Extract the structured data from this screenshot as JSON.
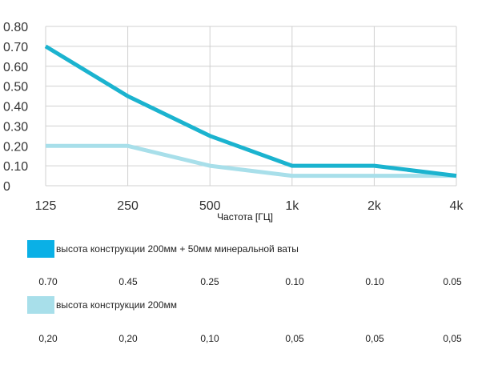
{
  "chart_data": {
    "type": "line",
    "x": [
      "125",
      "250",
      "500",
      "1k",
      "2k",
      "4k"
    ],
    "xlabel": "Частота [ГЦ]",
    "ytick_labels": [
      "0",
      "0.10",
      "0.20",
      "0.30",
      "0.40",
      "0.50",
      "0.60",
      "0.70",
      "0.80"
    ],
    "ylim": [
      0,
      0.8
    ],
    "grid": true,
    "series": [
      {
        "name": "высота конструкции 200мм + 50мм минеральной ваты",
        "color": "#1bb3cf",
        "values": [
          0.7,
          0.45,
          0.25,
          0.1,
          0.1,
          0.05
        ],
        "value_labels": [
          "0.70",
          "0.45",
          "0.25",
          "0.10",
          "0.10",
          "0.05"
        ]
      },
      {
        "name": "высота конструкции 200мм",
        "color": "#a8dfea",
        "values": [
          0.2,
          0.2,
          0.1,
          0.05,
          0.05,
          0.05
        ],
        "value_labels": [
          "0,20",
          "0,20",
          "0,10",
          "0,05",
          "0,05",
          "0,05"
        ]
      }
    ]
  }
}
